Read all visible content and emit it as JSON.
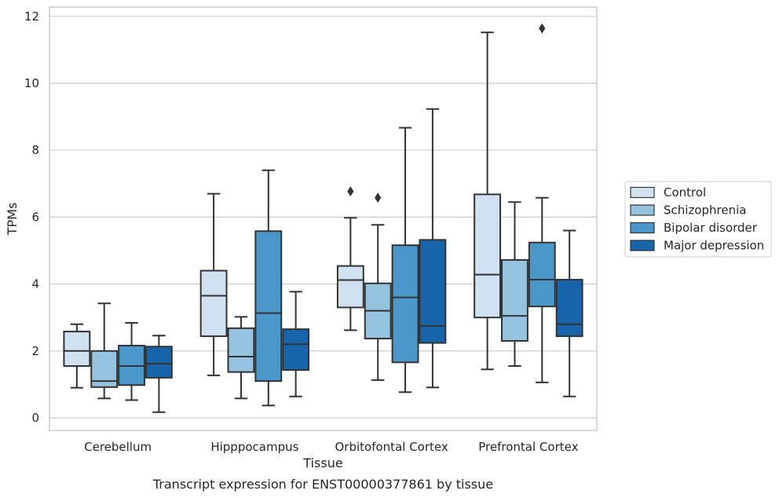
{
  "chart_data": {
    "type": "box",
    "caption": "Transcript expression for ENST00000377861 by tissue",
    "xlabel": "Tissue",
    "ylabel": "TPMs",
    "ylim": [
      -0.35,
      12.2
    ],
    "yticks": [
      0,
      2,
      4,
      6,
      8,
      10,
      12
    ],
    "grid": true,
    "legend_position": "right",
    "categories": [
      "Cerebellum",
      "Hipppocampus",
      "Orbitofontal Cortex",
      "Prefrontal Cortex"
    ],
    "series": [
      {
        "name": "Control",
        "color": "#d0e1f2",
        "boxes": [
          {
            "whisker_low": 0.9,
            "q1": 1.55,
            "median": 2.0,
            "q3": 2.58,
            "whisker_high": 2.8,
            "outliers": []
          },
          {
            "whisker_low": 1.27,
            "q1": 2.44,
            "median": 3.65,
            "q3": 4.4,
            "whisker_high": 6.7,
            "outliers": []
          },
          {
            "whisker_low": 2.62,
            "q1": 3.3,
            "median": 4.12,
            "q3": 4.54,
            "whisker_high": 5.98,
            "outliers": [
              6.77
            ]
          },
          {
            "whisker_low": 1.45,
            "q1": 3.0,
            "median": 4.28,
            "q3": 6.68,
            "whisker_high": 11.52,
            "outliers": []
          }
        ]
      },
      {
        "name": "Schizophrenia",
        "color": "#94c4df",
        "boxes": [
          {
            "whisker_low": 0.58,
            "q1": 0.92,
            "median": 1.1,
            "q3": 2.0,
            "whisker_high": 3.42,
            "outliers": []
          },
          {
            "whisker_low": 0.58,
            "q1": 1.37,
            "median": 1.83,
            "q3": 2.68,
            "whisker_high": 3.02,
            "outliers": []
          },
          {
            "whisker_low": 1.13,
            "q1": 2.37,
            "median": 3.2,
            "q3": 4.02,
            "whisker_high": 5.77,
            "outliers": [
              6.58
            ]
          },
          {
            "whisker_low": 1.55,
            "q1": 2.3,
            "median": 3.05,
            "q3": 4.72,
            "whisker_high": 6.45,
            "outliers": []
          }
        ]
      },
      {
        "name": "Bipolar disorder",
        "color": "#4a98c9",
        "boxes": [
          {
            "whisker_low": 0.53,
            "q1": 0.98,
            "median": 1.55,
            "q3": 2.16,
            "whisker_high": 2.84,
            "outliers": []
          },
          {
            "whisker_low": 0.37,
            "q1": 1.1,
            "median": 3.13,
            "q3": 5.58,
            "whisker_high": 7.4,
            "outliers": []
          },
          {
            "whisker_low": 0.77,
            "q1": 1.66,
            "median": 3.6,
            "q3": 5.16,
            "whisker_high": 8.67,
            "outliers": []
          },
          {
            "whisker_low": 1.06,
            "q1": 3.33,
            "median": 4.13,
            "q3": 5.24,
            "whisker_high": 6.58,
            "outliers": [
              11.64
            ]
          }
        ]
      },
      {
        "name": "Major depression",
        "color": "#1764ab",
        "boxes": [
          {
            "whisker_low": 0.17,
            "q1": 1.2,
            "median": 1.62,
            "q3": 2.13,
            "whisker_high": 2.46,
            "outliers": []
          },
          {
            "whisker_low": 0.64,
            "q1": 1.43,
            "median": 2.2,
            "q3": 2.65,
            "whisker_high": 3.77,
            "outliers": []
          },
          {
            "whisker_low": 0.91,
            "q1": 2.24,
            "median": 2.75,
            "q3": 5.32,
            "whisker_high": 9.23,
            "outliers": []
          },
          {
            "whisker_low": 0.64,
            "q1": 2.44,
            "median": 2.8,
            "q3": 4.13,
            "whisker_high": 5.6,
            "outliers": []
          }
        ]
      }
    ]
  }
}
